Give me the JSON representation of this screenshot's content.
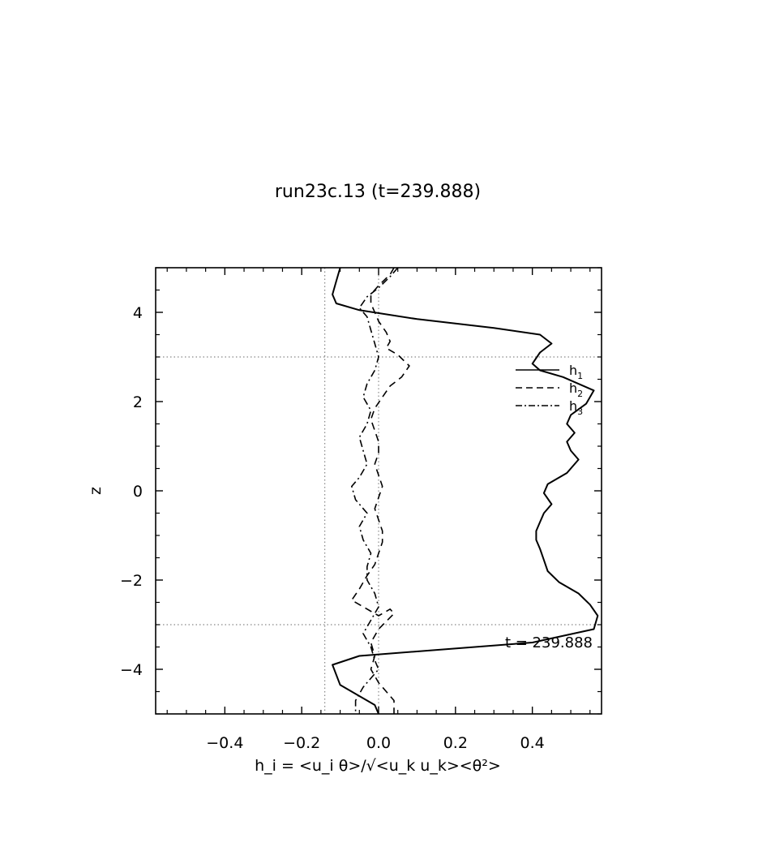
{
  "chart_data": {
    "type": "line",
    "title": "run23c.13 (t=239.888)",
    "xlabel": "h_i = <u_i θ>/√<u_k u_k><θ²>",
    "ylabel": "z",
    "xlim": [
      -0.58,
      0.58
    ],
    "ylim": [
      -5,
      5
    ],
    "xticks": [
      -0.4,
      -0.2,
      0.0,
      0.2,
      0.4
    ],
    "xtick_labels": [
      "−0.4",
      "−0.2",
      "0.0",
      "0.2",
      "0.4"
    ],
    "yticks": [
      -4,
      -2,
      0,
      2,
      4
    ],
    "ytick_labels": [
      "−4",
      "−2",
      "0",
      "2",
      "4"
    ],
    "grid": false,
    "reference_lines": {
      "horizontal": [
        3,
        -3
      ],
      "vertical": [
        -0.14,
        0.0
      ],
      "style": "dotted"
    },
    "legend_position": "right, upper",
    "annotation": "t = 239.888",
    "series": [
      {
        "name": "h1",
        "style": "solid",
        "points": [
          [
            -0.1,
            5.0
          ],
          [
            -0.11,
            4.7
          ],
          [
            -0.12,
            4.4
          ],
          [
            -0.11,
            4.2
          ],
          [
            -0.05,
            4.05
          ],
          [
            0.1,
            3.85
          ],
          [
            0.3,
            3.65
          ],
          [
            0.42,
            3.5
          ],
          [
            0.45,
            3.3
          ],
          [
            0.42,
            3.1
          ],
          [
            0.4,
            2.85
          ],
          [
            0.42,
            2.7
          ],
          [
            0.48,
            2.55
          ],
          [
            0.56,
            2.25
          ],
          [
            0.54,
            1.95
          ],
          [
            0.5,
            1.7
          ],
          [
            0.49,
            1.5
          ],
          [
            0.51,
            1.3
          ],
          [
            0.49,
            1.1
          ],
          [
            0.5,
            0.9
          ],
          [
            0.52,
            0.7
          ],
          [
            0.49,
            0.4
          ],
          [
            0.44,
            0.15
          ],
          [
            0.43,
            -0.05
          ],
          [
            0.45,
            -0.3
          ],
          [
            0.43,
            -0.5
          ],
          [
            0.42,
            -0.7
          ],
          [
            0.41,
            -0.9
          ],
          [
            0.41,
            -1.1
          ],
          [
            0.42,
            -1.3
          ],
          [
            0.43,
            -1.55
          ],
          [
            0.44,
            -1.8
          ],
          [
            0.47,
            -2.05
          ],
          [
            0.52,
            -2.3
          ],
          [
            0.55,
            -2.55
          ],
          [
            0.57,
            -2.8
          ],
          [
            0.56,
            -3.1
          ],
          [
            0.4,
            -3.4
          ],
          [
            0.1,
            -3.6
          ],
          [
            -0.05,
            -3.7
          ],
          [
            -0.12,
            -3.9
          ],
          [
            -0.1,
            -4.35
          ],
          [
            -0.05,
            -4.6
          ],
          [
            -0.01,
            -4.8
          ],
          [
            0.0,
            -5.0
          ]
        ]
      },
      {
        "name": "h2",
        "style": "dashed",
        "points": [
          [
            0.04,
            5.0
          ],
          [
            0.03,
            4.85
          ],
          [
            0.0,
            4.6
          ],
          [
            -0.02,
            4.4
          ],
          [
            -0.02,
            4.2
          ],
          [
            -0.01,
            4.0
          ],
          [
            0.0,
            3.8
          ],
          [
            0.02,
            3.55
          ],
          [
            0.03,
            3.35
          ],
          [
            0.02,
            3.2
          ],
          [
            0.05,
            3.05
          ],
          [
            0.08,
            2.8
          ],
          [
            0.06,
            2.55
          ],
          [
            0.03,
            2.35
          ],
          [
            0.01,
            2.1
          ],
          [
            -0.01,
            1.85
          ],
          [
            -0.02,
            1.6
          ],
          [
            -0.01,
            1.35
          ],
          [
            0.0,
            1.1
          ],
          [
            0.0,
            0.85
          ],
          [
            -0.01,
            0.6
          ],
          [
            0.0,
            0.35
          ],
          [
            0.01,
            0.1
          ],
          [
            0.0,
            -0.15
          ],
          [
            -0.01,
            -0.4
          ],
          [
            0.0,
            -0.65
          ],
          [
            0.01,
            -0.9
          ],
          [
            0.01,
            -1.15
          ],
          [
            0.0,
            -1.4
          ],
          [
            -0.01,
            -1.65
          ],
          [
            -0.03,
            -1.9
          ],
          [
            -0.05,
            -2.2
          ],
          [
            -0.07,
            -2.45
          ],
          [
            -0.04,
            -2.6
          ],
          [
            -0.02,
            -2.7
          ],
          [
            0.0,
            -2.8
          ],
          [
            0.03,
            -2.65
          ],
          [
            0.04,
            -2.75
          ],
          [
            0.0,
            -3.1
          ],
          [
            -0.02,
            -3.4
          ],
          [
            -0.01,
            -3.7
          ],
          [
            -0.02,
            -4.0
          ],
          [
            0.0,
            -4.3
          ],
          [
            0.02,
            -4.5
          ],
          [
            0.04,
            -4.7
          ],
          [
            0.04,
            -5.0
          ]
        ]
      },
      {
        "name": "h3",
        "style": "dashdot",
        "points": [
          [
            0.05,
            5.0
          ],
          [
            0.03,
            4.8
          ],
          [
            0.0,
            4.55
          ],
          [
            -0.03,
            4.35
          ],
          [
            -0.05,
            4.1
          ],
          [
            -0.03,
            3.9
          ],
          [
            -0.02,
            3.6
          ],
          [
            -0.01,
            3.3
          ],
          [
            0.0,
            3.0
          ],
          [
            -0.01,
            2.7
          ],
          [
            -0.03,
            2.4
          ],
          [
            -0.04,
            2.1
          ],
          [
            -0.02,
            1.8
          ],
          [
            -0.03,
            1.5
          ],
          [
            -0.05,
            1.2
          ],
          [
            -0.04,
            0.9
          ],
          [
            -0.03,
            0.6
          ],
          [
            -0.05,
            0.3
          ],
          [
            -0.07,
            0.1
          ],
          [
            -0.06,
            -0.2
          ],
          [
            -0.03,
            -0.5
          ],
          [
            -0.05,
            -0.8
          ],
          [
            -0.04,
            -1.1
          ],
          [
            -0.02,
            -1.4
          ],
          [
            -0.03,
            -1.7
          ],
          [
            -0.03,
            -2.0
          ],
          [
            -0.01,
            -2.3
          ],
          [
            0.0,
            -2.6
          ],
          [
            -0.02,
            -2.9
          ],
          [
            -0.04,
            -3.2
          ],
          [
            -0.02,
            -3.5
          ],
          [
            -0.01,
            -3.8
          ],
          [
            0.0,
            -4.0
          ],
          [
            -0.02,
            -4.2
          ],
          [
            -0.04,
            -4.4
          ],
          [
            -0.06,
            -4.7
          ],
          [
            -0.06,
            -5.0
          ]
        ]
      }
    ]
  }
}
